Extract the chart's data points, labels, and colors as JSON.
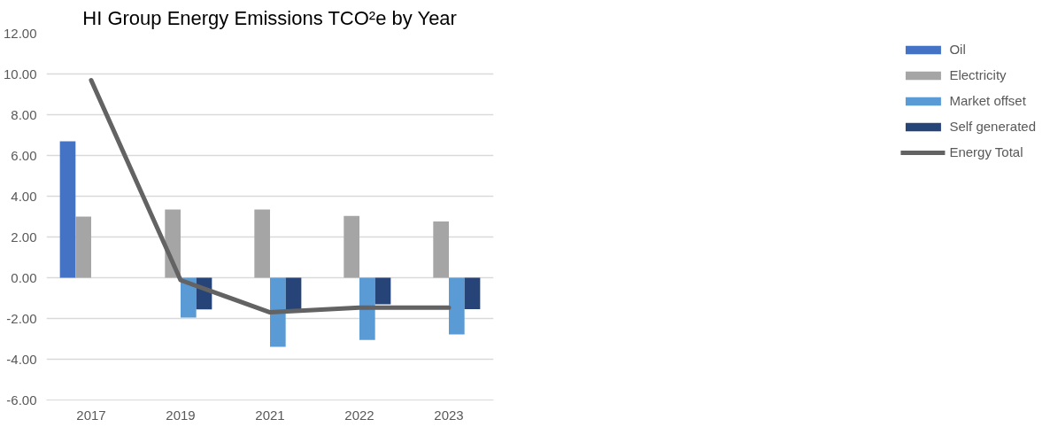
{
  "chart_data": {
    "type": "bar",
    "title": "HI Group Energy Emissions TCO²e by Year",
    "categories": [
      "2017",
      "2019",
      "2021",
      "2022",
      "2023"
    ],
    "series": [
      {
        "name": "Oil",
        "color": "#4472c4",
        "values": [
          6.7,
          null,
          null,
          null,
          null
        ]
      },
      {
        "name": "Electricity",
        "color": "#a5a5a5",
        "values": [
          3.0,
          3.35,
          3.35,
          3.03,
          2.76
        ]
      },
      {
        "name": "Market offset",
        "color": "#5b9bd5",
        "values": [
          null,
          -1.96,
          -3.39,
          -3.05,
          -2.78
        ]
      },
      {
        "name": "Self generated",
        "color": "#264478",
        "values": [
          null,
          -1.55,
          -1.55,
          -1.3,
          -1.54
        ]
      },
      {
        "name": "Energy Total",
        "type": "line",
        "color": "#636363",
        "values": [
          9.69,
          -0.12,
          -1.7,
          -1.47,
          -1.47
        ]
      }
    ],
    "ylim": [
      -6,
      12
    ],
    "yticks": [
      {
        "value": -6,
        "label": "-6.00"
      },
      {
        "value": -4,
        "label": "-4.00"
      },
      {
        "value": -2,
        "label": "-2.00"
      },
      {
        "value": 0,
        "label": "0.00"
      },
      {
        "value": 2,
        "label": "2.00"
      },
      {
        "value": 4,
        "label": "4.00"
      },
      {
        "value": 6,
        "label": "6.00"
      },
      {
        "value": 8,
        "label": "8.00"
      },
      {
        "value": 10,
        "label": "10.00"
      },
      {
        "value": 12,
        "label": "12.00"
      }
    ],
    "grid": "y",
    "legend": "right"
  }
}
